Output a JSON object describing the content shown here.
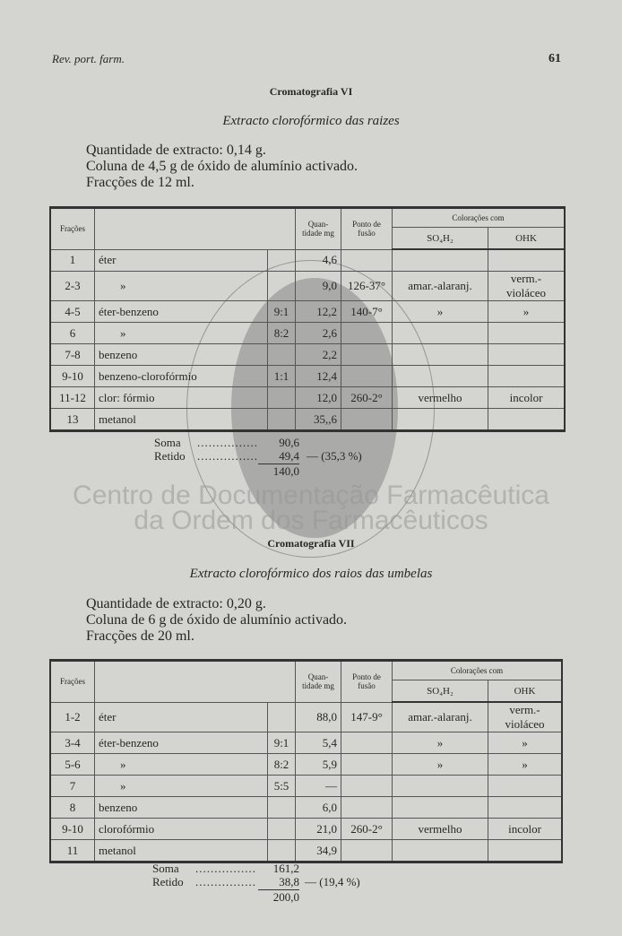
{
  "header": {
    "journal": "Rev. port. farm.",
    "page": "61"
  },
  "section1": {
    "title": "Cromatografia VI",
    "subtitle": "Extracto clorofórmico das raizes",
    "lines": [
      "Quantidade de extracto: 0,14 g.",
      "Coluna de 4,5 g de óxido de alumínio activado.",
      "Fracções de 12 ml."
    ],
    "table": {
      "headers": {
        "fracoes": "Frações",
        "quantidade": "Quan- tidade mg",
        "ponto": "Ponto de fusão",
        "coloracoes": "Colorações com",
        "so4h2": "SO₄H₂",
        "ohk": "OHK"
      },
      "rows": [
        [
          "1",
          "éter",
          "",
          "4,6",
          "",
          "",
          ""
        ],
        [
          "2-3",
          "»",
          "",
          "9,0",
          "126-37°",
          "amar.-alaranj.",
          "verm.-violáceo"
        ],
        [
          "4-5",
          "éter-benzeno",
          "9:1",
          "12,2",
          "140-7°",
          "»",
          "»"
        ],
        [
          "6",
          "»",
          "8:2",
          "2,6",
          "",
          "",
          ""
        ],
        [
          "7-8",
          "benzeno",
          "",
          "2,2",
          "",
          "",
          ""
        ],
        [
          "9-10",
          "benzeno-clorofórmio",
          "1:1",
          "12,4",
          "",
          "",
          ""
        ],
        [
          "11-12",
          "clor: fórmio",
          "",
          "12,0",
          "260-2°",
          "vermelho",
          "incolor"
        ],
        [
          "13",
          "metanol",
          "",
          "35,,6",
          "",
          "",
          ""
        ]
      ]
    },
    "summary": {
      "soma_label": "Soma",
      "soma": "90,6",
      "retido_label": "Retido",
      "retido": "49,4",
      "retido_pct": "— (35,3 %)",
      "total": "140,0"
    }
  },
  "section2": {
    "title": "Cromatografia VII",
    "subtitle": "Extracto clorofórmico dos raios das umbelas",
    "lines": [
      "Quantidade de extracto: 0,20 g.",
      "Coluna de 6 g de óxido de alumínio activado.",
      "Fracções de 20 ml."
    ],
    "table": {
      "headers": {
        "fracoes": "Frações",
        "quantidade": "Quan- tidade mg",
        "ponto": "Ponto de fusão",
        "coloracoes": "Colorações com",
        "so4h2": "SO₄H₂",
        "ohk": "OHK"
      },
      "rows": [
        [
          "1-2",
          "éter",
          "",
          "88,0",
          "147-9°",
          "amar.-alaranj.",
          "verm.-violáceo"
        ],
        [
          "3-4",
          "éter-benzeno",
          "9:1",
          "5,4",
          "",
          "»",
          "»"
        ],
        [
          "5-6",
          "»",
          "8:2",
          "5,9",
          "",
          "»",
          "»"
        ],
        [
          "7",
          "»",
          "5:5",
          "—",
          "",
          "",
          ""
        ],
        [
          "8",
          "benzeno",
          "",
          "6,0",
          "",
          "",
          ""
        ],
        [
          "9-10",
          "clorofórmio",
          "",
          "21,0",
          "260-2°",
          "vermelho",
          "incolor"
        ],
        [
          "11",
          "metanol",
          "",
          "34,9",
          "",
          "",
          ""
        ]
      ]
    },
    "summary": {
      "soma_label": "Soma",
      "soma": "161,2",
      "retido_label": "Retido",
      "retido": "38,8",
      "retido_pct": "— (19,4 %)",
      "total": "200,0"
    }
  },
  "watermark": {
    "line1": "Centro de Documentação Farmacêutica",
    "line2": "da Ordem dos Farmacêuticos"
  }
}
